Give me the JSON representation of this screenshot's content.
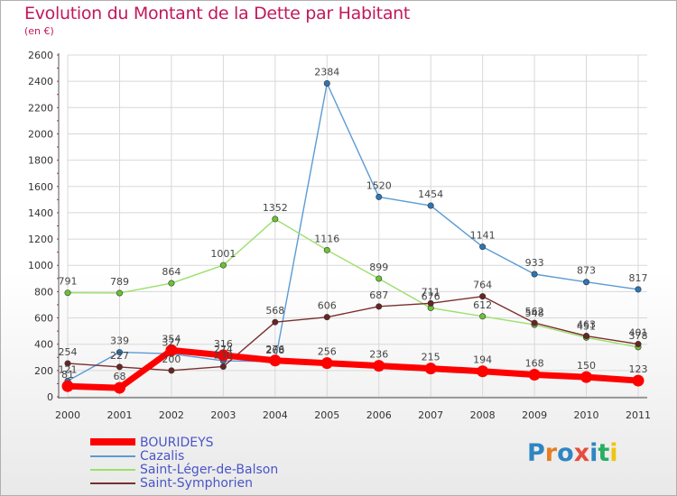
{
  "header": {
    "title": "Evolution du Montant de la Dette par Habitant",
    "subtitle": "(en €)"
  },
  "colors": {
    "title": "#c2185b",
    "grid": "#d8d8d8",
    "axis": "#555555",
    "legend_text": "#4a55c8"
  },
  "logo": {
    "text": "Proxiti",
    "letters": [
      "P",
      "r",
      "o",
      "x",
      "i",
      "t",
      "i"
    ],
    "letter_colors": [
      "#2e86c1",
      "#e67e22",
      "#2e86c1",
      "#e74c3c",
      "#2e86c1",
      "#27ae60",
      "#f1c40f"
    ]
  },
  "chart_data": {
    "type": "line",
    "title": "Evolution du Montant de la Dette par Habitant",
    "ylabel": "(en €)",
    "xlabel": "",
    "x": [
      "2000",
      "2001",
      "2002",
      "2003",
      "2004",
      "2005",
      "2006",
      "2007",
      "2008",
      "2009",
      "2010",
      "2011"
    ],
    "ylim": [
      0,
      2600
    ],
    "yticks": [
      0,
      200,
      400,
      600,
      800,
      1000,
      1200,
      1400,
      1600,
      1800,
      2000,
      2200,
      2400,
      2600
    ],
    "ytick_labels": [
      "0",
      "200",
      "400",
      "600",
      "800",
      "1000",
      "1200",
      "1400",
      "1600",
      "1800",
      "2000",
      "2200",
      "2400",
      "2600"
    ],
    "grid": true,
    "legend_position": "bottom-left",
    "series": [
      {
        "name": "Cazalis",
        "color": "#5b9bd5",
        "marker": "#2e75b6",
        "values": [
          121,
          339,
          327,
          274,
          268,
          2384,
          1520,
          1454,
          1141,
          933,
          873,
          817
        ],
        "labels": [
          "121",
          "339",
          "327",
          "274",
          "268",
          "2384",
          "1520",
          "1454",
          "1141",
          "933",
          "873",
          "817"
        ]
      },
      {
        "name": "Saint-Léger-de-Balson",
        "color": "#9be06a",
        "marker": "#6cc235",
        "values": [
          791,
          789,
          864,
          1001,
          1352,
          1116,
          899,
          676,
          612,
          548,
          451,
          378
        ],
        "labels": [
          "791",
          "789",
          "864",
          "1001",
          "1352",
          "1116",
          "899",
          "676",
          "612",
          "548",
          "451",
          "378"
        ]
      },
      {
        "name": "Saint-Symphorien",
        "color": "#7b2f2f",
        "marker": "#6a2424",
        "values": [
          254,
          227,
          200,
          230,
          568,
          606,
          687,
          711,
          764,
          562,
          463,
          401
        ],
        "labels": [
          "254",
          "227",
          "200",
          "230",
          "568",
          "606",
          "687",
          "711",
          "764",
          "562",
          "463",
          "401"
        ]
      },
      {
        "name": "BOURIDEYS",
        "color": "#ff0000",
        "marker": "#ff0000",
        "values": [
          81,
          68,
          354,
          316,
          276,
          256,
          236,
          215,
          194,
          168,
          150,
          123
        ],
        "labels": [
          "81",
          "68",
          "354",
          "316",
          "276",
          "256",
          "236",
          "215",
          "194",
          "168",
          "150",
          "123"
        ]
      }
    ]
  },
  "legend": {
    "items": [
      {
        "label": "BOURIDEYS",
        "color": "#ff0000"
      },
      {
        "label": "Cazalis",
        "color": "#5b9bd5"
      },
      {
        "label": "Saint-Léger-de-Balson",
        "color": "#9be06a"
      },
      {
        "label": "Saint-Symphorien",
        "color": "#7b2f2f"
      }
    ]
  }
}
